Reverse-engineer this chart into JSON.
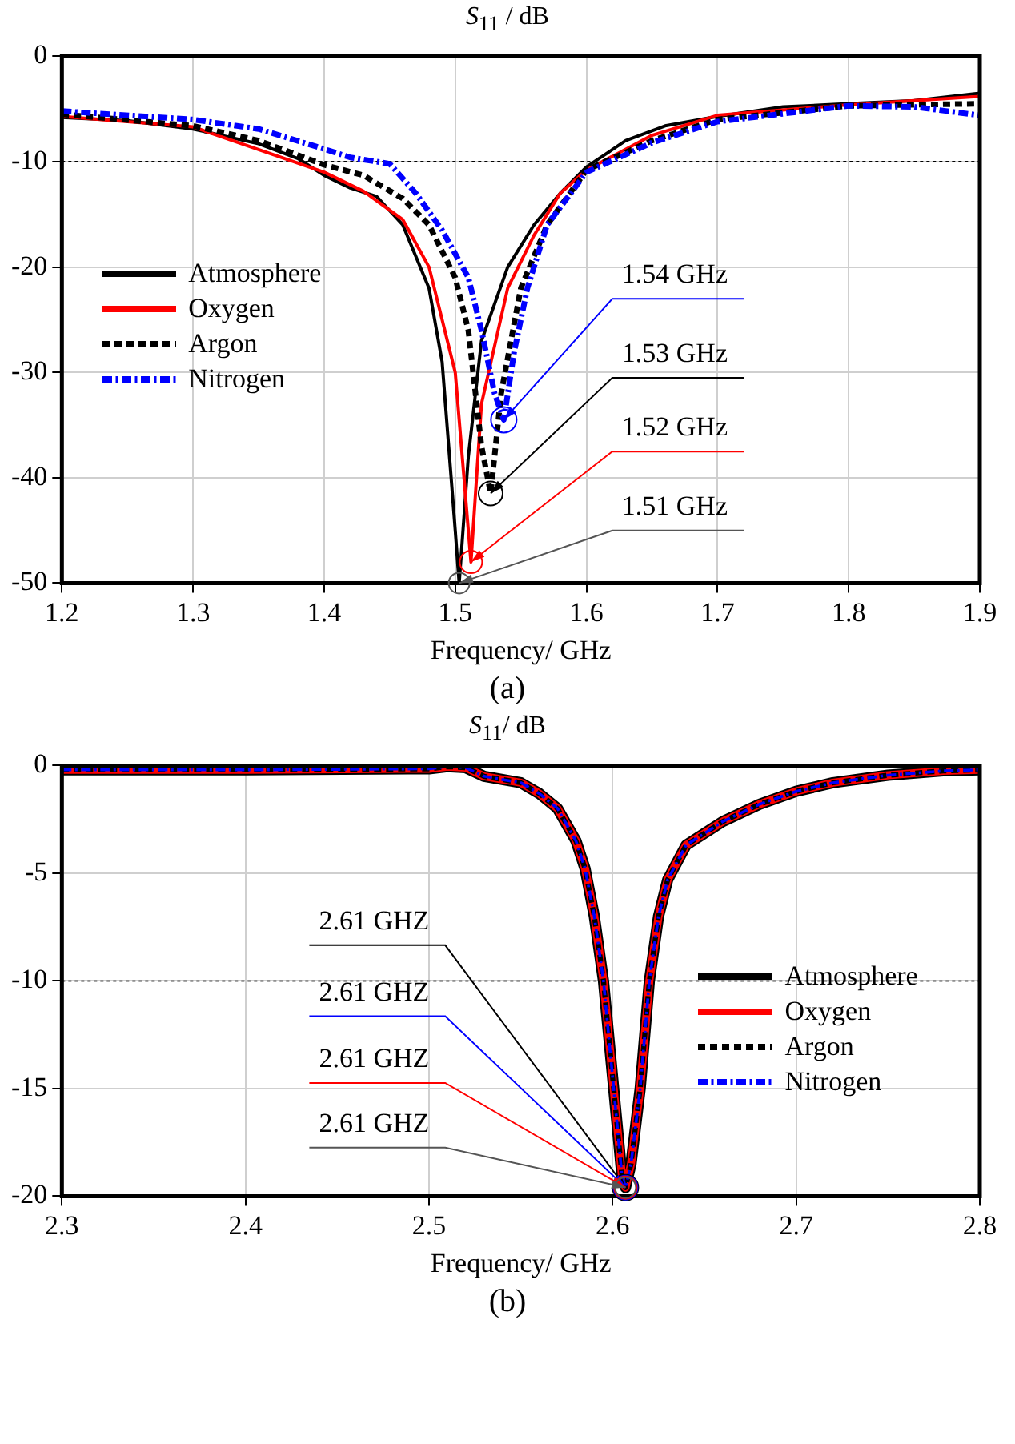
{
  "chart_data": [
    {
      "type": "line",
      "title": "S$_{11}$ / dB",
      "xlabel": "Frequency/ GHz",
      "annotations": [
        {
          "text": "1.54 GHz",
          "x": 1.537,
          "y": -34.5
        },
        {
          "text": "1.53 GHz",
          "x": 1.527,
          "y": -41.5
        },
        {
          "text": "1.52 GHz",
          "x": 1.512,
          "y": -48
        },
        {
          "text": "1.51 GHz",
          "x": 1.503,
          "y": -50
        },
        "(a)"
      ],
      "xlim": [
        1.2,
        1.9
      ],
      "xticks": [
        1.2,
        1.3,
        1.4,
        1.5,
        1.6,
        1.7,
        1.8,
        1.9
      ],
      "ylim": [
        -50,
        0
      ],
      "yticks": [
        -50,
        -40,
        -30,
        -20,
        -10,
        0
      ],
      "grid": true,
      "legend": "center left",
      "marker": "none",
      "ref_lines": [
        {
          "axis": "y",
          "value": -10,
          "color": "#000000",
          "line_style": "dotted"
        }
      ],
      "series": [
        {
          "name": "Atmosphere",
          "color": "#000000",
          "line_style": "solid",
          "x": [
            1.2,
            1.25,
            1.3,
            1.35,
            1.38,
            1.4,
            1.42,
            1.44,
            1.46,
            1.48,
            1.49,
            1.5,
            1.503,
            1.51,
            1.52,
            1.54,
            1.56,
            1.58,
            1.6,
            1.63,
            1.66,
            1.7,
            1.75,
            1.8,
            1.85,
            1.9
          ],
          "values": [
            -5.8,
            -6.1,
            -6.9,
            -8.3,
            -9.7,
            -11.3,
            -12.5,
            -13.3,
            -16,
            -22,
            -29,
            -45,
            -50,
            -38,
            -27,
            -20,
            -16,
            -13,
            -10.5,
            -8,
            -6.6,
            -5.7,
            -4.8,
            -4.5,
            -4.2,
            -3.5
          ]
        },
        {
          "name": "Oxygen",
          "color": "#ff0000",
          "line_style": "solid",
          "x": [
            1.2,
            1.3,
            1.4,
            1.43,
            1.46,
            1.48,
            1.5,
            1.51,
            1.512,
            1.52,
            1.54,
            1.56,
            1.58,
            1.6,
            1.65,
            1.7,
            1.8,
            1.9
          ],
          "values": [
            -5.7,
            -6.7,
            -11,
            -12.8,
            -15.5,
            -20,
            -30,
            -45,
            -48,
            -33,
            -22,
            -17,
            -13,
            -10.8,
            -7.5,
            -5.6,
            -4.6,
            -3.8
          ]
        },
        {
          "name": "Argon",
          "color": "#000000",
          "line_style": "dashed",
          "x": [
            1.2,
            1.3,
            1.35,
            1.4,
            1.43,
            1.46,
            1.48,
            1.5,
            1.51,
            1.52,
            1.527,
            1.535,
            1.55,
            1.57,
            1.6,
            1.65,
            1.7,
            1.8,
            1.9
          ],
          "values": [
            -5.5,
            -6.6,
            -8,
            -10.3,
            -11.3,
            -13.5,
            -16,
            -21,
            -26,
            -37,
            -41.5,
            -32,
            -22,
            -16,
            -10.8,
            -8,
            -6,
            -4.7,
            -4.5
          ]
        },
        {
          "name": "Nitrogen",
          "color": "#0000ff",
          "line_style": "dashdot",
          "x": [
            1.2,
            1.3,
            1.35,
            1.4,
            1.42,
            1.45,
            1.47,
            1.49,
            1.51,
            1.52,
            1.53,
            1.537,
            1.545,
            1.555,
            1.57,
            1.6,
            1.65,
            1.7,
            1.8,
            1.85,
            1.9
          ],
          "values": [
            -5.2,
            -6,
            -6.9,
            -8.8,
            -9.6,
            -10.2,
            -13,
            -16.5,
            -21,
            -26,
            -32,
            -34.5,
            -28,
            -22,
            -16,
            -11,
            -8.2,
            -6.2,
            -4.7,
            -4.8,
            -5.6
          ]
        }
      ]
    },
    {
      "type": "line",
      "title": "S$_{11}$/ dB",
      "xlabel": "Frequency/ GHz",
      "annotations": [
        {
          "text": "2.61 GHZ",
          "x": 2.607,
          "y": -19.6
        },
        {
          "text": "2.61 GHZ",
          "x": 2.607,
          "y": -19.6
        },
        {
          "text": "2.61 GHZ",
          "x": 2.607,
          "y": -19.6
        },
        {
          "text": "2.61 GHZ",
          "x": 2.607,
          "y": -19.6
        },
        "(b)"
      ],
      "xlim": [
        2.3,
        2.8
      ],
      "xticks": [
        2.3,
        2.4,
        2.5,
        2.6,
        2.7,
        2.8
      ],
      "ylim": [
        -20,
        0
      ],
      "yticks": [
        -20,
        -15,
        -10,
        -5,
        0
      ],
      "grid": true,
      "legend": "right",
      "marker": "none",
      "ref_lines": [
        {
          "axis": "y",
          "value": -10,
          "color": "#555555",
          "line_style": "dotted"
        }
      ],
      "series": [
        {
          "name": "Atmosphere",
          "color": "#000000",
          "line_style": "solid",
          "x": [
            2.3,
            2.4,
            2.5,
            2.51,
            2.52,
            2.53,
            2.55,
            2.56,
            2.57,
            2.58,
            2.585,
            2.59,
            2.595,
            2.6,
            2.605,
            2.607,
            2.61,
            2.615,
            2.62,
            2.625,
            2.63,
            2.64,
            2.66,
            2.68,
            2.7,
            2.72,
            2.75,
            2.78,
            2.8
          ],
          "values": [
            -0.2,
            -0.2,
            -0.15,
            -0.05,
            -0.1,
            -0.5,
            -0.8,
            -1.3,
            -2,
            -3.5,
            -4.8,
            -7,
            -10,
            -14.5,
            -19,
            -19.6,
            -18.5,
            -15,
            -10,
            -7,
            -5.3,
            -3.7,
            -2.6,
            -1.8,
            -1.2,
            -0.8,
            -0.45,
            -0.25,
            -0.2
          ]
        },
        {
          "name": "Oxygen",
          "color": "#ff0000",
          "line_style": "solid",
          "x": [
            2.3,
            2.4,
            2.5,
            2.51,
            2.52,
            2.53,
            2.55,
            2.56,
            2.57,
            2.58,
            2.585,
            2.59,
            2.595,
            2.6,
            2.605,
            2.607,
            2.61,
            2.615,
            2.62,
            2.625,
            2.63,
            2.64,
            2.66,
            2.68,
            2.7,
            2.72,
            2.75,
            2.78,
            2.8
          ],
          "values": [
            -0.2,
            -0.2,
            -0.15,
            -0.05,
            -0.1,
            -0.5,
            -0.8,
            -1.3,
            -2,
            -3.5,
            -4.8,
            -7,
            -10,
            -14.5,
            -19,
            -19.6,
            -18.5,
            -15,
            -10,
            -7,
            -5.3,
            -3.7,
            -2.6,
            -1.8,
            -1.2,
            -0.8,
            -0.45,
            -0.25,
            -0.2
          ]
        },
        {
          "name": "Argon",
          "color": "#000000",
          "line_style": "dashed",
          "x": [
            2.3,
            2.4,
            2.5,
            2.51,
            2.52,
            2.53,
            2.55,
            2.56,
            2.57,
            2.58,
            2.585,
            2.59,
            2.595,
            2.6,
            2.605,
            2.607,
            2.61,
            2.615,
            2.62,
            2.625,
            2.63,
            2.64,
            2.66,
            2.68,
            2.7,
            2.72,
            2.75,
            2.78,
            2.8
          ],
          "values": [
            -0.2,
            -0.2,
            -0.15,
            -0.05,
            -0.1,
            -0.5,
            -0.8,
            -1.3,
            -2,
            -3.5,
            -4.8,
            -7,
            -10,
            -14.5,
            -19,
            -19.6,
            -18.5,
            -15,
            -10,
            -7,
            -5.3,
            -3.7,
            -2.6,
            -1.8,
            -1.2,
            -0.8,
            -0.45,
            -0.25,
            -0.2
          ]
        },
        {
          "name": "Nitrogen",
          "color": "#0000ff",
          "line_style": "dashdot",
          "x": [
            2.3,
            2.4,
            2.5,
            2.51,
            2.52,
            2.53,
            2.55,
            2.56,
            2.57,
            2.58,
            2.585,
            2.59,
            2.595,
            2.6,
            2.605,
            2.607,
            2.61,
            2.615,
            2.62,
            2.625,
            2.63,
            2.64,
            2.66,
            2.68,
            2.7,
            2.72,
            2.75,
            2.78,
            2.8
          ],
          "values": [
            -0.2,
            -0.2,
            -0.15,
            -0.05,
            -0.1,
            -0.5,
            -0.8,
            -1.3,
            -2,
            -3.5,
            -4.8,
            -7,
            -10,
            -14.5,
            -19,
            -19.6,
            -18.5,
            -15,
            -10,
            -7,
            -5.3,
            -3.7,
            -2.6,
            -1.8,
            -1.2,
            -0.8,
            -0.45,
            -0.25,
            -0.2
          ]
        }
      ]
    }
  ]
}
